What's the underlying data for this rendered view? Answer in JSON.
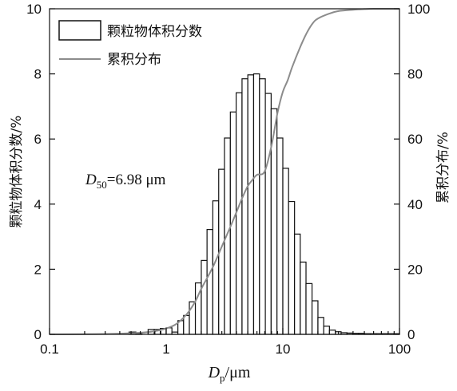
{
  "chart_data": {
    "type": "bar",
    "x_scale": "log",
    "xlabel_main": "D",
    "xlabel_sub": "p",
    "xlabel_unit": "/μm",
    "xlim": [
      0.1,
      100
    ],
    "x_ticks": [
      "0.1",
      "1",
      "10",
      "100"
    ],
    "ylabel_left": "颗粒物体积分数/%",
    "ylim_left": [
      0,
      10
    ],
    "y_ticks_left": [
      "0",
      "2",
      "4",
      "6",
      "8",
      "10"
    ],
    "ylabel_right": "累积分布/%",
    "ylim_right": [
      0,
      100
    ],
    "y_ticks_right": [
      "0",
      "20",
      "40",
      "60",
      "80",
      "100"
    ],
    "annotation": {
      "main": "D",
      "sub": "50",
      "rest": "=6.98 μm"
    },
    "legend": {
      "position": "top-left",
      "bar_label": "颗粒物体积分数",
      "line_label": "累积分布"
    },
    "series_colors": {
      "bars_fill": "#ffffff",
      "bars_stroke": "#111111",
      "line": "#8c8c8c"
    },
    "bars": {
      "x_start": [
        0.48,
        0.55,
        0.7,
        0.79,
        0.89,
        1.0,
        1.12,
        1.26,
        1.41,
        1.58,
        1.78,
        2.0,
        2.24,
        2.51,
        2.82,
        3.16,
        3.55,
        3.98,
        4.47,
        5.01,
        5.62,
        6.31,
        7.08,
        7.94,
        8.91,
        10.0,
        11.2,
        12.6,
        14.1,
        15.8,
        17.8,
        20.0,
        22.4,
        25.1,
        28.2,
        31.6,
        35.5,
        39.8,
        44.7,
        50.1,
        56.2,
        63.1,
        70.8,
        79.4,
        89.1
      ],
      "x_end": [
        0.55,
        0.62,
        0.79,
        0.89,
        1.0,
        1.12,
        1.26,
        1.41,
        1.58,
        1.78,
        2.0,
        2.24,
        2.51,
        2.82,
        3.16,
        3.55,
        3.98,
        4.47,
        5.01,
        5.62,
        6.31,
        7.08,
        7.94,
        8.91,
        10.0,
        11.2,
        12.6,
        14.1,
        15.8,
        17.8,
        20.0,
        22.4,
        25.1,
        28.2,
        31.6,
        35.5,
        39.8,
        44.7,
        50.1,
        56.2,
        63.1,
        70.8,
        79.4,
        89.1,
        100.0
      ],
      "values": [
        0.07,
        0.02,
        0.15,
        0.15,
        0.18,
        0.2,
        0.07,
        0.42,
        0.58,
        1.0,
        1.58,
        2.27,
        3.22,
        4.1,
        5.07,
        6.03,
        6.83,
        7.42,
        7.85,
        7.97,
        8.0,
        7.85,
        7.4,
        6.93,
        6.03,
        5.1,
        4.08,
        3.08,
        2.22,
        1.56,
        1.03,
        0.52,
        0.25,
        0.13,
        0.08,
        0.05,
        0.04,
        0.03,
        0.03,
        0.02,
        0.02,
        0.02,
        0.02,
        0.02,
        0.02
      ]
    },
    "cumulative": {
      "x": [
        0.1,
        0.3,
        0.6,
        0.8,
        1.0,
        1.2,
        1.4,
        1.6,
        1.8,
        2.0,
        2.5,
        3.0,
        3.5,
        4.0,
        4.5,
        5.0,
        5.5,
        6.0,
        6.98,
        8.0,
        9.0,
        10.0,
        11.0,
        12.0,
        14.0,
        16.0,
        18.0,
        20.0,
        25.0,
        30.0,
        40.0,
        50.0,
        60.0,
        80.0,
        100.0
      ],
      "y": [
        0,
        0.1,
        0.5,
        1.0,
        1.8,
        3.0,
        5.0,
        7.5,
        10.5,
        14.0,
        20.5,
        27.0,
        32.5,
        37.5,
        42.0,
        45.5,
        47.5,
        49.0,
        50.0,
        58.0,
        68.0,
        74.5,
        78.0,
        82.0,
        88.0,
        92.5,
        95.5,
        97.0,
        98.5,
        99.3,
        99.7,
        99.9,
        100.0,
        100.0,
        100.0
      ]
    }
  }
}
